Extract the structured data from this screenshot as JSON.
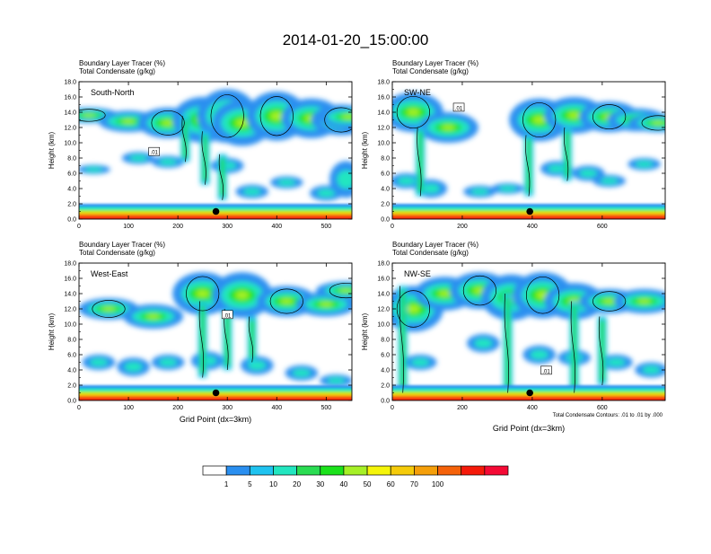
{
  "title": "2014-01-20_15:00:00",
  "footnote": "Total Condensate Contours: .01 to .01 by .000",
  "colorbar": {
    "colors": [
      "#ffffff",
      "#2a8ff0",
      "#1fc3f0",
      "#22e6c0",
      "#2adc52",
      "#1be21b",
      "#a6f027",
      "#f5f50a",
      "#f5cb0a",
      "#f59f0a",
      "#f5620a",
      "#f51a0a",
      "#f50a35"
    ],
    "labels": [
      "1",
      "5",
      "10",
      "20",
      "30",
      "40",
      "50",
      "60",
      "70",
      "100"
    ]
  },
  "chart_data": [
    {
      "type": "heatmap",
      "header_line1": "Boundary Layer Tracer   (%)",
      "header_line2": "Total Condensate   (g/kg)",
      "inset_label": "South-North",
      "ylabel": "Height (km)",
      "xlabel": "",
      "yticks": [
        "0.0",
        "2.0",
        "4.0",
        "6.0",
        "8.0",
        "10.0",
        "12.0",
        "14.0",
        "16.0",
        "18.0"
      ],
      "xticks": [
        0,
        100,
        200,
        300,
        400,
        500
      ],
      "xlim": [
        0,
        552
      ],
      "ylim": [
        0,
        18
      ],
      "contour_label": ".01",
      "contour_label_pos": [
        152,
        8.8
      ],
      "marker": [
        277,
        1.0
      ],
      "cloud": [
        [
          20,
          13.6,
          1.0
        ],
        [
          100,
          12.8,
          1.4
        ],
        [
          180,
          12.6,
          2.0
        ],
        [
          250,
          13.0,
          3.0
        ],
        [
          300,
          13.5,
          3.5
        ],
        [
          330,
          12.6,
          3.0
        ],
        [
          400,
          13.5,
          3.2
        ],
        [
          470,
          13.2,
          2.6
        ],
        [
          530,
          13.0,
          2.0
        ],
        [
          545,
          13.4,
          1.5
        ]
      ],
      "lowcloud": [
        [
          30,
          6.5,
          0.6
        ],
        [
          120,
          8.0,
          0.8
        ],
        [
          180,
          7.5,
          0.8
        ],
        [
          300,
          7.0,
          1.0
        ],
        [
          350,
          3.6,
          0.9
        ],
        [
          420,
          4.8,
          0.8
        ],
        [
          500,
          3.4,
          1.0
        ],
        [
          540,
          5.2,
          2.4
        ]
      ],
      "columns": [
        [
          255,
          4.5,
          11.5
        ],
        [
          290,
          2.5,
          8.5
        ],
        [
          215,
          7.5,
          13.5
        ]
      ]
    },
    {
      "type": "heatmap",
      "header_line1": "Boundary Layer Tracer   (%)",
      "header_line2": "Total Condensate   (g/kg)",
      "inset_label": "SW-NE",
      "ylabel": "Height (km)",
      "xlabel": "",
      "yticks": [
        "0.0",
        "2.0",
        "4.0",
        "6.0",
        "8.0",
        "10.0",
        "12.0",
        "14.0",
        "16.0",
        "18.0"
      ],
      "xticks": [
        0,
        200,
        400,
        600
      ],
      "xlim": [
        0,
        780
      ],
      "ylim": [
        0,
        18
      ],
      "contour_label": ".01",
      "contour_label_pos": [
        190,
        14.6
      ],
      "marker": [
        393,
        1.0
      ],
      "cloud": [
        [
          60,
          14.0,
          2.6
        ],
        [
          160,
          12.0,
          2.0
        ],
        [
          420,
          13.0,
          2.8
        ],
        [
          520,
          13.6,
          2.4
        ],
        [
          620,
          13.4,
          2.0
        ],
        [
          700,
          13.0,
          1.5
        ],
        [
          760,
          12.6,
          1.2
        ]
      ],
      "lowcloud": [
        [
          40,
          5.0,
          1.0
        ],
        [
          110,
          4.0,
          1.2
        ],
        [
          250,
          3.6,
          0.8
        ],
        [
          330,
          4.0,
          0.7
        ],
        [
          470,
          6.6,
          1.0
        ],
        [
          560,
          6.0,
          1.0
        ],
        [
          620,
          5.0,
          0.8
        ],
        [
          720,
          7.2,
          0.8
        ]
      ],
      "columns": [
        [
          80,
          3.0,
          12.0
        ],
        [
          390,
          3.0,
          11.0
        ],
        [
          500,
          5.0,
          12.0
        ]
      ]
    },
    {
      "type": "heatmap",
      "header_line1": "Boundary Layer Tracer   (%)",
      "header_line2": "Total Condensate   (g/kg)",
      "inset_label": "West-East",
      "ylabel": "Height (km)",
      "xlabel": "Grid Point (dx=3km)",
      "yticks": [
        "0.0",
        "2.0",
        "4.0",
        "6.0",
        "8.0",
        "10.0",
        "12.0",
        "14.0",
        "16.0",
        "18.0"
      ],
      "xticks": [
        0,
        100,
        200,
        300,
        400,
        500
      ],
      "xlim": [
        0,
        552
      ],
      "ylim": [
        0,
        18
      ],
      "contour_label": ".01",
      "contour_label_pos": [
        300,
        11.2
      ],
      "marker": [
        277,
        1.0
      ],
      "cloud": [
        [
          60,
          12.0,
          1.4
        ],
        [
          150,
          11.0,
          1.6
        ],
        [
          250,
          14.0,
          2.8
        ],
        [
          330,
          13.8,
          3.0
        ],
        [
          420,
          13.0,
          2.0
        ],
        [
          500,
          12.6,
          1.6
        ],
        [
          540,
          14.4,
          1.2
        ]
      ],
      "lowcloud": [
        [
          40,
          5.0,
          1.0
        ],
        [
          110,
          4.4,
          1.2
        ],
        [
          180,
          5.0,
          1.0
        ],
        [
          260,
          5.2,
          1.2
        ],
        [
          360,
          4.6,
          1.2
        ],
        [
          450,
          3.6,
          1.0
        ],
        [
          520,
          2.6,
          0.8
        ]
      ],
      "columns": [
        [
          250,
          3.0,
          13.0
        ],
        [
          300,
          4.0,
          12.0
        ],
        [
          350,
          5.0,
          11.0
        ]
      ]
    },
    {
      "type": "heatmap",
      "header_line1": "Boundary Layer Tracer   (%)",
      "header_line2": "Total Condensate   (g/kg)",
      "inset_label": "NW-SE",
      "ylabel": "Height (km)",
      "xlabel": "Grid Point (dx=3km)",
      "yticks": [
        "0.0",
        "2.0",
        "4.0",
        "6.0",
        "8.0",
        "10.0",
        "12.0",
        "14.0",
        "16.0",
        "18.0"
      ],
      "xticks": [
        0,
        200,
        400,
        600
      ],
      "xlim": [
        0,
        780
      ],
      "ylim": [
        0,
        18
      ],
      "contour_label": ".01",
      "contour_label_pos": [
        440,
        3.9
      ],
      "marker": [
        393,
        1.0
      ],
      "cloud": [
        [
          60,
          12.0,
          3.0
        ],
        [
          150,
          14.0,
          2.2
        ],
        [
          250,
          14.4,
          2.4
        ],
        [
          340,
          13.5,
          3.0
        ],
        [
          430,
          13.8,
          3.0
        ],
        [
          520,
          13.0,
          2.4
        ],
        [
          620,
          13.0,
          1.6
        ],
        [
          720,
          13.0,
          1.6
        ]
      ],
      "lowcloud": [
        [
          80,
          5.0,
          1.0
        ],
        [
          260,
          7.5,
          1.2
        ],
        [
          420,
          6.0,
          1.2
        ],
        [
          520,
          5.6,
          1.0
        ],
        [
          640,
          5.0,
          1.0
        ],
        [
          740,
          4.0,
          1.0
        ]
      ],
      "columns": [
        [
          30,
          1.0,
          15.0
        ],
        [
          330,
          1.0,
          14.0
        ],
        [
          520,
          1.0,
          13.0
        ],
        [
          600,
          2.0,
          11.0
        ]
      ]
    }
  ]
}
